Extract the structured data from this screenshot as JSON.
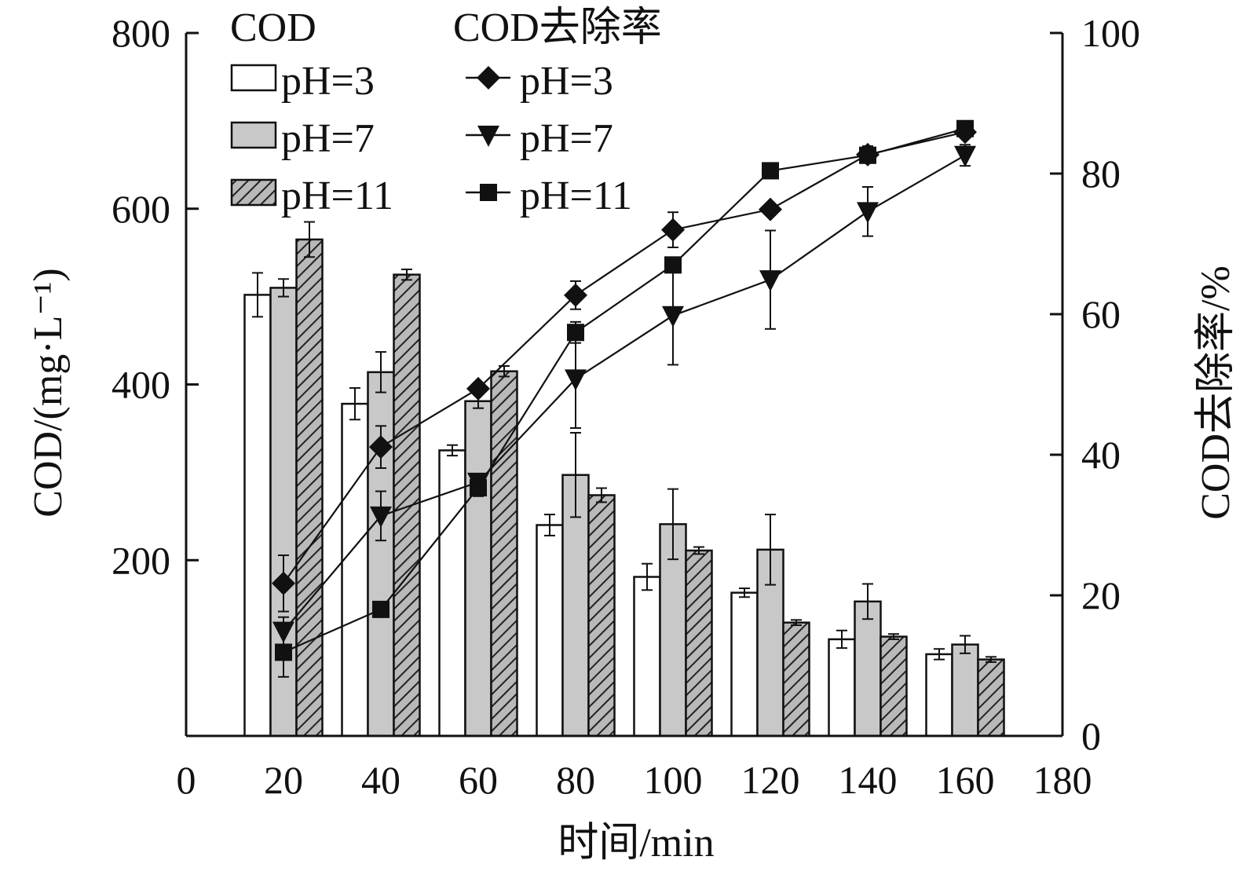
{
  "chart_data": {
    "type": "bar+line",
    "xlabel": "时间/min",
    "ylabel_left": "COD/(mg·L⁻¹)",
    "ylabel_right": "COD去除率/%",
    "xlim": [
      0,
      180
    ],
    "x_ticks": [
      0,
      20,
      40,
      60,
      80,
      100,
      120,
      140,
      160,
      180
    ],
    "ylim_left": [
      0,
      800
    ],
    "y_ticks_left": [
      200,
      400,
      600,
      800
    ],
    "ylim_right": [
      0,
      100
    ],
    "y_ticks_right": [
      0,
      20,
      40,
      60,
      80,
      100
    ],
    "categories": [
      20,
      40,
      60,
      80,
      100,
      120,
      140,
      160
    ],
    "legend_group_titles": {
      "bars": "COD",
      "lines": "COD去除率"
    },
    "bar_series": [
      {
        "name": "pH=3",
        "fill": "white",
        "values": [
          502,
          378,
          325,
          240,
          181,
          163,
          110,
          93
        ],
        "errors": [
          25,
          18,
          6,
          12,
          15,
          5,
          10,
          6
        ]
      },
      {
        "name": "pH=7",
        "fill": "#c8c8c8",
        "values": [
          510,
          414,
          381,
          297,
          241,
          212,
          153,
          104
        ],
        "errors": [
          10,
          23,
          8,
          48,
          40,
          40,
          20,
          10
        ]
      },
      {
        "name": "pH=11",
        "fill": "hatched",
        "values": [
          565,
          525,
          415,
          274,
          211,
          129,
          113,
          87
        ],
        "errors": [
          20,
          6,
          6,
          8,
          4,
          3,
          3,
          3
        ]
      }
    ],
    "line_series": [
      {
        "name": "pH=3",
        "marker": "diamond",
        "x": [
          20,
          40,
          60,
          80,
          100,
          120,
          140,
          160
        ],
        "y": [
          21.7,
          41.1,
          49.4,
          62.7,
          72.0,
          74.9,
          82.7,
          85.9
        ],
        "errors": [
          4.0,
          3.0,
          0.8,
          2.0,
          2.5,
          0.8,
          1.2,
          0.8
        ]
      },
      {
        "name": "pH=7",
        "marker": "triangle-down",
        "x": [
          20,
          40,
          60,
          80,
          100,
          120,
          140,
          160
        ],
        "y": [
          14.9,
          31.3,
          36.1,
          50.8,
          59.8,
          64.9,
          74.6,
          82.6
        ],
        "errors": [
          2.0,
          3.5,
          1.0,
          7.0,
          7.0,
          7.0,
          3.5,
          1.5
        ]
      },
      {
        "name": "pH=11",
        "marker": "square",
        "x": [
          20,
          40,
          60,
          80,
          100,
          120,
          140,
          160
        ],
        "y": [
          11.9,
          18.0,
          35.3,
          57.4,
          67.0,
          80.4,
          82.6,
          86.4
        ],
        "errors": [
          3.5,
          0.5,
          1.2,
          1.5,
          0.6,
          0.6,
          0.6,
          0.6
        ]
      }
    ]
  }
}
